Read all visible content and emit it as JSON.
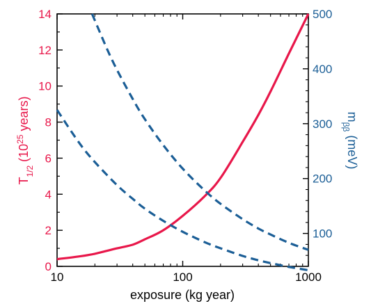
{
  "chart_data": {
    "type": "line",
    "x_scale": "log",
    "xlim": [
      10,
      1000
    ],
    "xlabel": "exposure (kg year)",
    "x_ticks": [
      10,
      100,
      1000
    ],
    "x_tick_labels": [
      "10",
      "100",
      "1000"
    ],
    "y_left": {
      "label_main": "T",
      "label_sub": "1/2",
      "label_pre": " (10",
      "label_sup": "25",
      "label_post": " years)",
      "ylim": [
        0,
        14
      ],
      "ticks": [
        0,
        2,
        4,
        6,
        8,
        10,
        12,
        14
      ],
      "tick_labels": [
        "0",
        "2",
        "4",
        "6",
        "8",
        "10",
        "12",
        "14"
      ],
      "color": "#e8174a"
    },
    "y_right": {
      "label_main": "m",
      "label_sub": "ββ",
      "label_post": " (meV)",
      "ylim": [
        40,
        500
      ],
      "ticks": [
        100,
        200,
        300,
        400,
        500
      ],
      "tick_labels": [
        "100",
        "200",
        "300",
        "400",
        "500"
      ],
      "color": "#1b5e96"
    },
    "series": [
      {
        "axis": "left",
        "style": "solid",
        "color": "#e8174a",
        "x": [
          10,
          15,
          20,
          30,
          40,
          50,
          70,
          100,
          150,
          200,
          300,
          400,
          500,
          700,
          1000
        ],
        "y": [
          0.4,
          0.55,
          0.7,
          1.0,
          1.2,
          1.5,
          2.0,
          2.8,
          3.9,
          4.9,
          6.9,
          8.4,
          9.7,
          11.8,
          14.0
        ]
      },
      {
        "axis": "right",
        "style": "dashed",
        "color": "#1b5e96",
        "x": [
          19,
          25,
          30,
          40,
          50,
          70,
          100,
          150,
          200,
          300,
          400,
          500,
          700,
          1000
        ],
        "y": [
          500,
          436,
          398,
          345,
          308,
          261,
          218,
          178,
          154,
          126,
          109,
          98,
          83,
          70
        ]
      },
      {
        "axis": "right",
        "style": "dashed",
        "color": "#1b5e96",
        "x": [
          10,
          15,
          20,
          30,
          40,
          50,
          70,
          100,
          150,
          200,
          300,
          400,
          500,
          700,
          1000
        ],
        "y": [
          325,
          265,
          230,
          188,
          163,
          145,
          123,
          103,
          84,
          73,
          59,
          51,
          46,
          39,
          33
        ]
      }
    ]
  }
}
